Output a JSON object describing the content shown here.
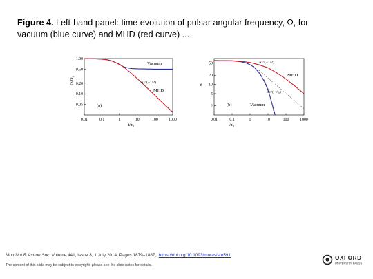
{
  "caption": {
    "label": "Figure 4.",
    "text": " Left-hand panel: time evolution of pulsar angular frequency, Ω, for vacuum (blue curve) and MHD (red curve) ..."
  },
  "chart_data": [
    {
      "type": "line",
      "panel_label": "(a)",
      "xlabel": "t/τ₀",
      "ylabel": "Ω/Ω₀",
      "x_scale": "log",
      "y_scale": "log",
      "xlim": [
        0.01,
        1000
      ],
      "ylim": [
        0.025,
        1.0
      ],
      "x_ticks": [
        "0.01",
        "0.1",
        "1",
        "10",
        "100",
        "1000"
      ],
      "y_ticks": [
        "1.00",
        "0.50",
        "0.20",
        "0.10",
        "0.05"
      ],
      "series": [
        {
          "name": "Vacuum",
          "color": "#2b2f9c",
          "x": [
            0.01,
            0.03,
            0.1,
            0.2,
            0.4,
            0.7,
            1,
            1.5,
            2,
            3,
            5,
            10,
            100,
            1000
          ],
          "y": [
            1.0,
            0.99,
            0.96,
            0.92,
            0.84,
            0.74,
            0.67,
            0.6,
            0.565,
            0.54,
            0.52,
            0.51,
            0.5,
            0.5
          ]
        },
        {
          "name": "MHD",
          "color": "#c0202a",
          "x": [
            0.01,
            0.03,
            0.1,
            0.2,
            0.4,
            0.7,
            1,
            2,
            4,
            10,
            30,
            100,
            300,
            1000
          ],
          "y": [
            1.0,
            0.99,
            0.96,
            0.92,
            0.84,
            0.74,
            0.69,
            0.54,
            0.4,
            0.27,
            0.16,
            0.09,
            0.053,
            0.03
          ]
        }
      ],
      "annotations": [
        "Vacuum",
        "∝t^(−1/2)",
        "MHD",
        "(a)"
      ]
    },
    {
      "type": "line",
      "panel_label": "(b)",
      "xlabel": "t/τ₀",
      "ylabel": "α",
      "x_scale": "log",
      "y_scale": "log",
      "xlim": [
        0.01,
        1000
      ],
      "ylim": [
        1,
        70
      ],
      "x_ticks": [
        "0.01",
        "0.1",
        "1",
        "10",
        "100",
        "1000"
      ],
      "y_ticks": [
        "50",
        "20",
        "10",
        "5",
        "2"
      ],
      "series": [
        {
          "name": "Vacuum",
          "color": "#2b2f9c",
          "x": [
            0.01,
            0.1,
            0.3,
            0.6,
            1,
            1.5,
            2,
            3,
            4,
            6,
            8,
            10,
            13,
            16,
            20,
            25
          ],
          "y": [
            60,
            59,
            55,
            50,
            44,
            38,
            33,
            25,
            20,
            13,
            9,
            6.5,
            4,
            2.6,
            1.6,
            1.0
          ]
        },
        {
          "name": "MHD",
          "color": "#c0202a",
          "x": [
            0.01,
            0.1,
            0.3,
            1,
            3,
            10,
            30,
            100,
            300,
            1000
          ],
          "y": [
            60,
            59,
            57,
            52,
            44,
            35,
            24,
            15,
            9,
            5
          ]
        }
      ],
      "annotations": [
        "∝t^(−1/2)",
        "MHD",
        "∝e^(−t/τ₀)",
        "Vacuum",
        "(b)"
      ]
    }
  ],
  "citation": {
    "journal": "Mon Not R Astron Soc",
    "details": ", Volume 441, Issue 3, 1 July 2014, Pages 1879–1887,",
    "doi": "https://doi.org/10.1093/mnras/stu591"
  },
  "notice": "The content of this slide may be subject to copyright: please see the slide notes for details.",
  "logo": {
    "name": "OXFORD",
    "subtitle": "UNIVERSITY PRESS"
  },
  "colors": {
    "vacuum": "#2b2f9c",
    "mhd": "#c0202a",
    "link": "#1a33cc"
  }
}
